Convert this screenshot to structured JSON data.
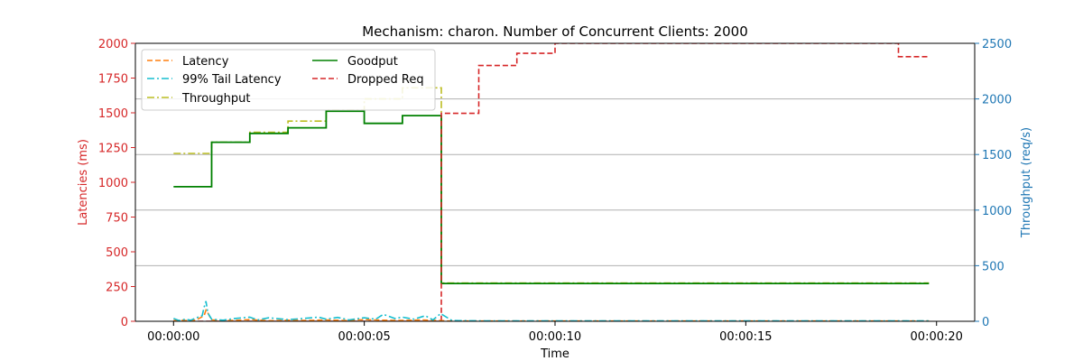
{
  "chart_data": {
    "type": "line",
    "title": "Mechanism: charon. Number of Concurrent Clients: 2000",
    "xlabel": "Time",
    "ylabel_left": "Latencies (ms)",
    "ylabel_right": "Throughput (req/s)",
    "xlim": [
      -1,
      21
    ],
    "ylim_left": [
      0,
      2000
    ],
    "ylim_right": [
      0,
      2500
    ],
    "x_ticks": [
      0,
      5,
      10,
      15,
      20
    ],
    "x_tick_labels": [
      "00:00:00",
      "00:00:05",
      "00:00:10",
      "00:00:15",
      "00:00:20"
    ],
    "y_left_ticks": [
      0,
      250,
      500,
      750,
      1000,
      1250,
      1500,
      1750,
      2000
    ],
    "y_left_tick_labels": [
      "0",
      "250",
      "500",
      "750",
      "1000",
      "1250",
      "1500",
      "1750",
      "2000"
    ],
    "y_right_ticks": [
      0,
      500,
      1000,
      1500,
      2000,
      2500
    ],
    "y_right_tick_labels": [
      "0",
      "500",
      "1000",
      "1500",
      "2000",
      "2500"
    ],
    "grid": "horizontal (right axis)",
    "legend_position": "top-left",
    "colors": {
      "left_axis": "#d62728",
      "right_axis": "#1f77b4",
      "latency": "#ff7f0e",
      "tail_latency": "#17becf",
      "throughput": "#bcbd22",
      "goodput": "#008000",
      "dropped": "#d62728",
      "grid": "#b0b0b0"
    },
    "series": [
      {
        "name": "Latency",
        "axis": "left",
        "style": "dashed",
        "x": [
          0,
          0.2,
          0.4,
          0.6,
          0.8,
          0.85,
          0.9,
          1,
          1.5,
          2,
          2.5,
          3,
          3.5,
          4,
          4.5,
          5,
          5.5,
          6,
          6.5,
          7,
          7.2,
          8,
          10,
          12,
          14,
          16,
          18,
          19.8
        ],
        "y": [
          5,
          8,
          4,
          10,
          40,
          80,
          60,
          10,
          5,
          12,
          4,
          8,
          6,
          10,
          5,
          12,
          8,
          6,
          10,
          5,
          2,
          2,
          2,
          2,
          2,
          2,
          2,
          2
        ]
      },
      {
        "name": "99% Tail Latency",
        "axis": "left",
        "style": "dashdot",
        "x": [
          0,
          0.15,
          0.3,
          0.45,
          0.6,
          0.75,
          0.8,
          0.85,
          0.9,
          1.0,
          1.3,
          1.6,
          2.0,
          2.2,
          2.5,
          3.0,
          3.4,
          3.8,
          4.0,
          4.3,
          4.6,
          5.0,
          5.3,
          5.5,
          5.8,
          6.0,
          6.3,
          6.6,
          6.8,
          7.0,
          7.3,
          8,
          10,
          12,
          14,
          16,
          18,
          19.8
        ],
        "y": [
          20,
          5,
          15,
          8,
          25,
          40,
          100,
          145,
          60,
          15,
          8,
          20,
          30,
          10,
          25,
          12,
          20,
          30,
          15,
          28,
          10,
          25,
          15,
          50,
          20,
          30,
          15,
          40,
          10,
          55,
          5,
          3,
          3,
          3,
          3,
          3,
          3,
          3
        ]
      },
      {
        "name": "Throughput",
        "axis": "right",
        "style": "dashdot",
        "step": true,
        "x": [
          0,
          1,
          2,
          3,
          4,
          5,
          6,
          7,
          7.02,
          19.8
        ],
        "y": [
          1510,
          1610,
          1700,
          1800,
          1900,
          2000,
          2100,
          2100,
          345,
          345
        ]
      },
      {
        "name": "Goodput",
        "axis": "right",
        "style": "solid",
        "step": true,
        "x": [
          0,
          1,
          2,
          3,
          4,
          5,
          6,
          7,
          7.02,
          19.8
        ],
        "y": [
          1210,
          1610,
          1690,
          1740,
          1890,
          1780,
          1850,
          1850,
          340,
          340
        ]
      },
      {
        "name": "Dropped Req",
        "axis": "right",
        "style": "dashed",
        "step": true,
        "x": [
          0,
          6.9,
          7,
          7.02,
          8,
          9,
          10,
          19,
          19.8
        ],
        "y": [
          0,
          0,
          0,
          1870,
          2300,
          2410,
          2530,
          2380,
          2380
        ]
      }
    ]
  }
}
